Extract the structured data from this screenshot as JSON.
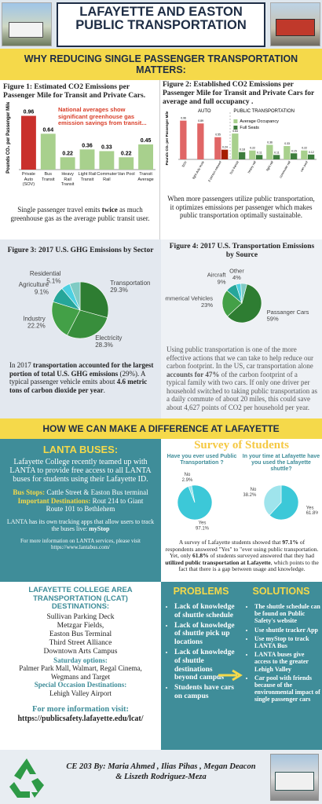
{
  "header": {
    "title": "LAFAYETTE AND EASTON PUBLIC TRANSPORTATION"
  },
  "why": {
    "heading": "WHY REDUCING SINGLE PASSENGER TRANSPORTATION MATTERS:"
  },
  "figure1": {
    "type": "bar",
    "title": "Figure 1: Estimated CO2 Emissions per Passenger Mile for Transit and Private Cars.",
    "y_label": "Pounds CO₂ per Passenger Mile",
    "annotation": "National averages show significant greenhouse gas emission savings from transit...",
    "categories": [
      "Private Auto (SOV)",
      "Bus Transit",
      "Heavy Rail Transit",
      "Light Rail Transit",
      "Commuter Rail",
      "Van Pool",
      "Transit Average"
    ],
    "values": [
      0.96,
      0.64,
      0.22,
      0.36,
      0.33,
      0.22,
      0.45
    ],
    "colors": [
      "#c9302c",
      "#a8d08d",
      "#a8d08d",
      "#a8d08d",
      "#a8d08d",
      "#a8d08d",
      "#a8d08d"
    ],
    "ylim": [
      0,
      1.15
    ],
    "caption": [
      {
        "text": "Single passenger travel emits "
      },
      {
        "text": "twice",
        "bold": true
      },
      {
        "text": " as much greenhouse gas as the average public transit user."
      }
    ]
  },
  "figure2": {
    "type": "grouped-bar",
    "title": "Figure 2: Established CO2 Emissions per Passenger Mile for Transit and Private Cars for average and full occupancy .",
    "y_label": "Pounds CO₂ per Passenger Mile",
    "groups": [
      "AUTO",
      "PUBLIC TRANSPORTATION"
    ],
    "categories": [
      "SOV",
      "light duty truck",
      "2-person carpool",
      "bus transit",
      "heavy rail",
      "light rail",
      "commuter rail",
      "van pool"
    ],
    "series": [
      {
        "name": "Average Occupancy",
        "color": "#a8d08d",
        "values": [
          0.96,
          0.89,
          0.55,
          0.64,
          0.22,
          0.36,
          0.33,
          0.22
        ],
        "colors": [
          "#e06666",
          "#e06666",
          "#e06666",
          "#a8d08d",
          "#a8d08d",
          "#a8d08d",
          "#a8d08d",
          "#a8d08d"
        ]
      },
      {
        "name": "Full Seats",
        "color": "#3d7d3d",
        "values": [
          null,
          null,
          0.24,
          0.18,
          0.11,
          0.11,
          0.15,
          0.12
        ],
        "colors": [
          null,
          null,
          "#a61c00",
          "#3d7d3d",
          "#3d7d3d",
          "#3d7d3d",
          "#3d7d3d",
          "#3d7d3d"
        ]
      }
    ],
    "ylim": [
      0,
      1.05
    ],
    "caption": [
      {
        "text": "When more passengers utilize public transportation, it optimizes emissions per passenger  which makes public transportation optimally sustainable."
      }
    ]
  },
  "figure3": {
    "type": "pie",
    "title": "Figure 3: 2017 U.S. GHG Emissions by Sector",
    "categories": [
      "Transportation",
      "Electricity",
      "Industry",
      "Agriculture",
      "Residential",
      null
    ],
    "values": [
      29.3,
      28.3,
      22.2,
      9.1,
      5.1,
      6.0
    ],
    "value_labels": [
      "29.3%",
      "28.3%",
      "22.2%",
      "9.1%",
      "5.1%",
      null
    ],
    "colors": [
      "#2e7d32",
      "#388e3c",
      "#43a047",
      "#26a69a",
      "#4dd0e1",
      "#80cbc4"
    ],
    "start_angle": -90,
    "caption": [
      {
        "text": "In 2017 "
      },
      {
        "text": "transportation accounted for the largest portion of total U.S. GHG emissions",
        "bold": true
      },
      {
        "text": " (29%). A typical passenger vehicle emits about "
      },
      {
        "text": "4.6 metric tons of carbon dioxide per year",
        "bold": true
      },
      {
        "text": "."
      }
    ]
  },
  "figure4": {
    "type": "pie",
    "title": "Figure 4: 2017 U.S. Transportation Emissions by Source",
    "categories": [
      "Passanger Cars",
      "Commerical Vehicles",
      "Aircraft",
      "Other",
      null
    ],
    "values": [
      59,
      23,
      9,
      4,
      5
    ],
    "value_labels": [
      "59%",
      "23%",
      "9%",
      "4%",
      null
    ],
    "colors": [
      "#2e7d32",
      "#43a047",
      "#26a69a",
      "#4dd0e1",
      "#80cbc4"
    ],
    "start_angle": -75,
    "caption": [
      {
        "text": "Using public transportation is one of the more effective actions that we can take to help reduce our carbon footprint. In the US, car transportation alone "
      },
      {
        "text": "accounts for 47%",
        "bold": true
      },
      {
        "text": " of the carbon footprint of a typical family with two cars. If only one driver per household switched to taking public transportation as a daily commute of about 20 miles, this could save about 4,627 points of CO2 per household per year."
      }
    ]
  },
  "difference": {
    "heading": "HOW WE CAN MAKE A DIFFERENCE AT LAFAYETTE"
  },
  "lanta": {
    "heading": "LANTA BUSES:",
    "intro": "Lafayette College recently teamed up with LANTA to provide free access to all LANTA buses for students using their Lafayette ID.",
    "stops_label": "Bus Stops:",
    "stops": "Cattle Street & Easton Bus terminal",
    "destinations_label": "Important Destinations:",
    "destinations": [
      "Rout 214 to Giant",
      "Route 101  to Bethlehem"
    ],
    "tracking": [
      {
        "text": "LANTA has its own tracking apps that allow users to track the buses live: "
      },
      {
        "text": "myStop",
        "bold": true
      }
    ],
    "more_info": "For more information on LANTA services, please visit https://www.lantabus.com/"
  },
  "survey": {
    "heading": "Survey  of  Students",
    "pies": [
      {
        "type": "pie",
        "question": "Have you ever used Public Transportation ?",
        "categories": [
          "Yes",
          "No"
        ],
        "values": [
          97.1,
          2.9
        ],
        "value_labels": [
          "97.1%",
          "2.9%"
        ],
        "colors": [
          "#3cc8d8",
          "#9fe4ec"
        ],
        "start_angle": -101
      },
      {
        "type": "pie",
        "question": "In your time at Lafayette have you used the Lafayette shuttle?",
        "categories": [
          "Yes",
          "No"
        ],
        "values": [
          61.8,
          38.2
        ],
        "value_labels": [
          "61.8%",
          "38.2%"
        ],
        "colors": [
          "#3cc8d8",
          "#9fe4ec"
        ],
        "start_angle": -90
      }
    ],
    "caption": [
      {
        "text": "A survey of Lafayette students showed that "
      },
      {
        "text": "97.1%",
        "bold": true
      },
      {
        "text": " of respondents answered \"Yes\" to \"ever using public transportation. Yet, only "
      },
      {
        "text": "61.8%",
        "bold": true
      },
      {
        "text": " of students surveyed answered that they had "
      },
      {
        "text": "utilized public transportation at Lafayette",
        "bold": true
      },
      {
        "text": ", which points to the fact that there is a gap between usage and knowledge."
      }
    ]
  },
  "lcat": {
    "heading": "LAFAYETTE COLLEGE AREA TRANSPORTATION (LCAT) DESTINATIONS:",
    "destinations": [
      "Sullivan Parking Deck",
      "Metzgar Fields,",
      "Easton Bus Terminal",
      "Third Street Alliance",
      "Downtown Arts Campus"
    ],
    "saturday_label": "Saturday options:",
    "saturday": "Palmer Park Mall, Walmart, Regal Cinema, Wegmans and Target",
    "special_label": "Special Occasion Destinations:",
    "special": "Lehigh Valley Airport",
    "more_label": "For more information visit:",
    "url": "https://publicsafety.lafayette.edu/lcat/"
  },
  "problems": {
    "heading": "PROBLEMS",
    "items": [
      "Lack of knowledge of shuttle schedule",
      "Lack of knowledge of shuttle pick up locations",
      "Lack of knowledge of shuttle destinations beyond campus",
      "Students have cars on campus"
    ]
  },
  "solutions": {
    "heading": "SOLUTIONS",
    "items": [
      "The shuttle schedule can be found on Public Safety's website",
      "Use shuttle tracker App",
      "Use myStop to track LANTA Bus",
      "LANTA buses give access to the greater Lehigh Valley",
      "Car pool with friends because of the environmental impact of single passenger cars"
    ]
  },
  "footer": {
    "credits": "CE 203 By: Maria Ahmed , Ilias Pihas , Megan Deacon & Liszeth Rodriguez-Meza"
  }
}
